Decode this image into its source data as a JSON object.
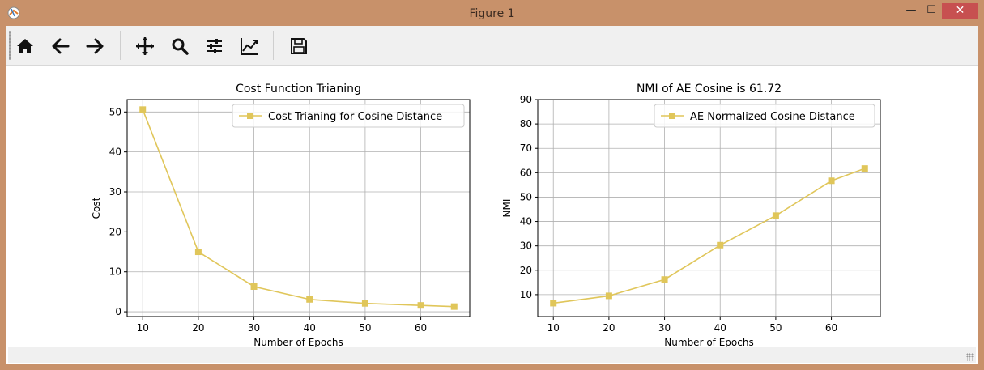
{
  "window": {
    "title": "Figure 1",
    "minimize_glyph": "—",
    "maximize_glyph": "☐",
    "close_glyph": "✕"
  },
  "toolbar": {
    "tools": [
      {
        "name": "home-icon",
        "tooltip": "Home"
      },
      {
        "name": "back-arrow-icon",
        "tooltip": "Back"
      },
      {
        "name": "forward-arrow-icon",
        "tooltip": "Forward"
      },
      {
        "name": "pan-icon",
        "tooltip": "Pan"
      },
      {
        "name": "zoom-icon",
        "tooltip": "Zoom"
      },
      {
        "name": "subplots-icon",
        "tooltip": "Subplots"
      },
      {
        "name": "customize-icon",
        "tooltip": "Customize"
      },
      {
        "name": "save-icon",
        "tooltip": "Save"
      }
    ]
  },
  "colors": {
    "series": "#e0c65a",
    "grid": "#b0b0b0",
    "axis": "#000000"
  },
  "chart_data": [
    {
      "type": "line",
      "title": "Cost Function Trianing",
      "xlabel": "Number of Epochs",
      "ylabel": "Cost",
      "x": [
        10,
        20,
        30,
        40,
        50,
        60,
        66
      ],
      "series": [
        {
          "name": "Cost Trianing for Cosine Distance",
          "values": [
            50.6,
            15.0,
            6.3,
            3.1,
            2.1,
            1.6,
            1.3
          ]
        }
      ],
      "xticks": [
        10,
        20,
        30,
        40,
        50,
        60
      ],
      "yticks": [
        0,
        10,
        20,
        30,
        40,
        50
      ],
      "xlim": [
        7.2,
        68.8
      ],
      "ylim": [
        -1.2,
        53.1
      ],
      "grid": true,
      "legend": "top-right",
      "marker": "square"
    },
    {
      "type": "line",
      "title": "NMI of AE Cosine is 61.72",
      "xlabel": "Number of Epochs",
      "ylabel": "NMI",
      "x": [
        10,
        20,
        30,
        40,
        50,
        60,
        66
      ],
      "series": [
        {
          "name": "AE Normalized Cosine Distance",
          "values": [
            6.5,
            9.5,
            16.2,
            30.3,
            42.4,
            56.7,
            61.72
          ]
        }
      ],
      "xticks": [
        10,
        20,
        30,
        40,
        50,
        60
      ],
      "yticks": [
        10,
        20,
        30,
        40,
        50,
        60,
        70,
        80,
        90
      ],
      "xlim": [
        7.2,
        68.8
      ],
      "ylim": [
        1.0,
        90.0
      ],
      "grid": true,
      "legend": "top-right",
      "marker": "square"
    }
  ]
}
